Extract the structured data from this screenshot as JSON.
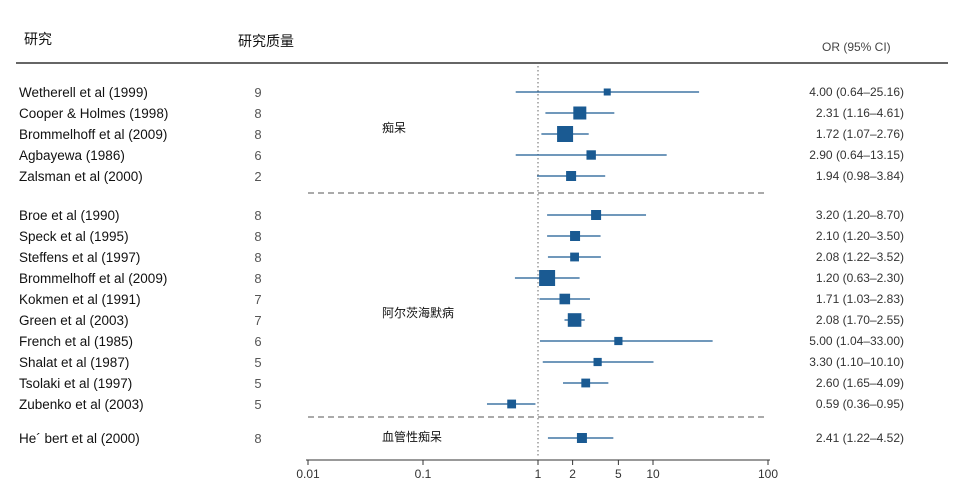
{
  "header": {
    "study": "研究",
    "quality": "研究质量",
    "or": "OR (95% CI)"
  },
  "groups": [
    {
      "label": "痴呆"
    },
    {
      "label": "阿尔茨海默病"
    },
    {
      "label": "血管性痴呆"
    }
  ],
  "colors": {
    "marker": "#1a5a92",
    "line": "#111111",
    "dash": "#555555"
  },
  "chart_data": {
    "type": "forest",
    "xscale": "log",
    "xlim": [
      0.01,
      100
    ],
    "xticks": [
      "0.01",
      "0.1",
      "1",
      "2",
      "5",
      "10",
      "100"
    ],
    "reference_line": 1,
    "rows": [
      {
        "study": "Wetherell et al (1999)",
        "quality": "9",
        "or": 4.0,
        "lo": 0.64,
        "hi": 25.16,
        "or_text": "4.00 (0.64–25.16)",
        "group": 0,
        "weight": 0.25
      },
      {
        "study": "Cooper & Holmes (1998)",
        "quality": "8",
        "or": 2.31,
        "lo": 1.16,
        "hi": 4.61,
        "or_text": "2.31 (1.16–4.61)",
        "group": 0,
        "weight": 0.75
      },
      {
        "study": "Brommelhoff et al (2009)",
        "quality": "8",
        "or": 1.72,
        "lo": 1.07,
        "hi": 2.76,
        "or_text": "1.72 (1.07–2.76)",
        "group": 0,
        "weight": 1.0
      },
      {
        "study": "Agbayewa (1986)",
        "quality": "6",
        "or": 2.9,
        "lo": 0.64,
        "hi": 13.15,
        "or_text": "2.90 (0.64–13.15)",
        "group": 0,
        "weight": 0.45
      },
      {
        "study": "Zalsman et al (2000)",
        "quality": "2",
        "or": 1.94,
        "lo": 0.98,
        "hi": 3.84,
        "or_text": "1.94 (0.98–3.84)",
        "group": 0,
        "weight": 0.5
      },
      {
        "study": "Broe et al (1990)",
        "quality": "8",
        "or": 3.2,
        "lo": 1.2,
        "hi": 8.7,
        "or_text": "3.20 (1.20–8.70)",
        "group": 1,
        "weight": 0.5
      },
      {
        "study": "Speck et al (1995)",
        "quality": "8",
        "or": 2.1,
        "lo": 1.2,
        "hi": 3.5,
        "or_text": "2.10 (1.20–3.50)",
        "group": 1,
        "weight": 0.5
      },
      {
        "study": "Steffens et al (1997)",
        "quality": "8",
        "or": 2.08,
        "lo": 1.22,
        "hi": 3.52,
        "or_text": "2.08 (1.22–3.52)",
        "group": 1,
        "weight": 0.4
      },
      {
        "study": "Brommelhoff et al (2009)",
        "quality": "8",
        "or": 1.2,
        "lo": 0.63,
        "hi": 2.3,
        "or_text": "1.20 (0.63–2.30)",
        "group": 1,
        "weight": 1.0
      },
      {
        "study": "Kokmen et al (1991)",
        "quality": "7",
        "or": 1.71,
        "lo": 1.03,
        "hi": 2.83,
        "or_text": "1.71 (1.03–2.83)",
        "group": 1,
        "weight": 0.55
      },
      {
        "study": "Green et al (2003)",
        "quality": "7",
        "or": 2.08,
        "lo": 1.7,
        "hi": 2.55,
        "or_text": "2.08 (1.70–2.55)",
        "group": 1,
        "weight": 0.8
      },
      {
        "study": "French et al (1985)",
        "quality": "6",
        "or": 5.0,
        "lo": 1.04,
        "hi": 33.0,
        "or_text": "5.00 (1.04–33.00)",
        "group": 1,
        "weight": 0.35
      },
      {
        "study": "Shalat et al (1987)",
        "quality": "5",
        "or": 3.3,
        "lo": 1.1,
        "hi": 10.1,
        "or_text": "3.30 (1.10–10.10)",
        "group": 1,
        "weight": 0.35
      },
      {
        "study": "Tsolaki et al (1997)",
        "quality": "5",
        "or": 2.6,
        "lo": 1.65,
        "hi": 4.09,
        "or_text": "2.60 (1.65–4.09)",
        "group": 1,
        "weight": 0.4
      },
      {
        "study": "Zubenko et al (2003)",
        "quality": "5",
        "or": 0.59,
        "lo": 0.36,
        "hi": 0.95,
        "or_text": "0.59 (0.36–0.95)",
        "group": 1,
        "weight": 0.4
      },
      {
        "study": "He´ bert et al (2000)",
        "quality": "8",
        "or": 2.41,
        "lo": 1.22,
        "hi": 4.52,
        "or_text": "2.41 (1.22–4.52)",
        "group": 2,
        "weight": 0.5
      }
    ]
  }
}
